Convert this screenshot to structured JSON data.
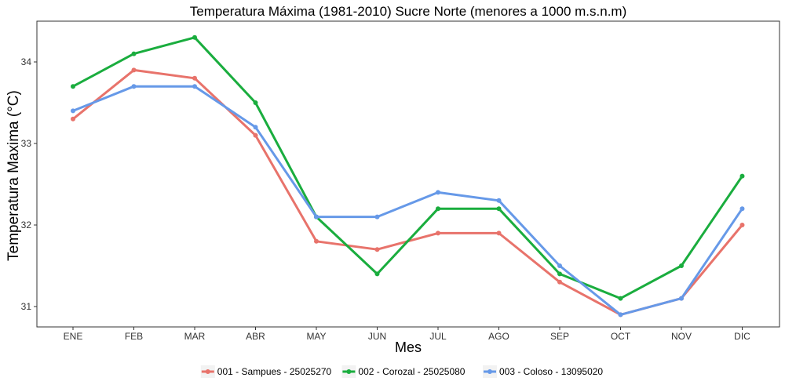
{
  "chart_data": {
    "type": "line",
    "title": "Temperatura Máxima (1981-2010) Sucre Norte (menores a 1000 m.s.n.m)",
    "xlabel": "Mes",
    "ylabel": "Temperatura Maxima (°C)",
    "categories": [
      "ENE",
      "FEB",
      "MAR",
      "ABR",
      "MAY",
      "JUN",
      "JUL",
      "AGO",
      "SEP",
      "OCT",
      "NOV",
      "DIC"
    ],
    "ylim": [
      30.75,
      34.5
    ],
    "yticks": [
      "31",
      "32",
      "33",
      "34"
    ],
    "grid": false,
    "legend_position": "bottom",
    "series": [
      {
        "name": "001 - Sampues - 25025270",
        "color": "#e8736b",
        "values": [
          33.3,
          33.9,
          33.8,
          33.1,
          31.8,
          31.7,
          31.9,
          31.9,
          31.3,
          30.9,
          31.1,
          32.0
        ]
      },
      {
        "name": "002 - Corozal - 25025080",
        "color": "#1aad3e",
        "values": [
          33.7,
          34.1,
          34.3,
          33.5,
          32.1,
          31.4,
          32.2,
          32.2,
          31.4,
          31.1,
          31.5,
          32.6
        ]
      },
      {
        "name": "003 - Coloso - 13095020",
        "color": "#6699e8",
        "values": [
          33.4,
          33.7,
          33.7,
          33.2,
          32.1,
          32.1,
          32.4,
          32.3,
          31.5,
          30.9,
          31.1,
          32.2
        ]
      }
    ]
  }
}
